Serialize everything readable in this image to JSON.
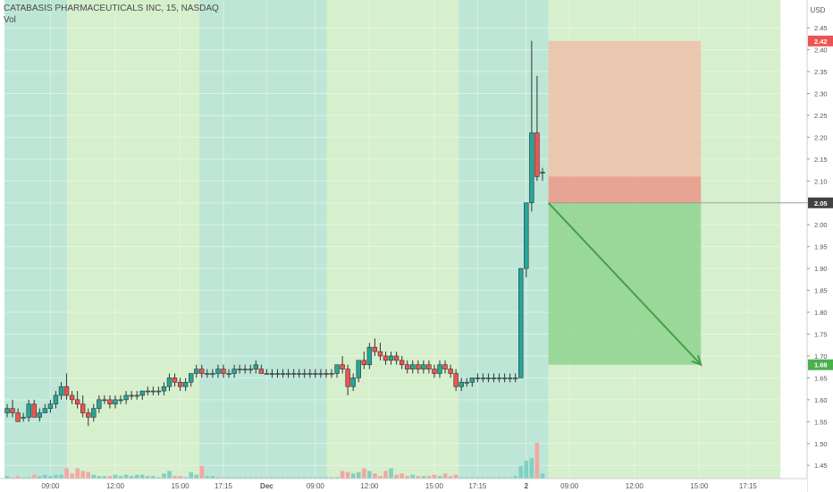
{
  "header": {
    "title": "CATABASIS PHARMACEUTICALS INC, 15, NASDAQ",
    "volume_label": "Vol"
  },
  "currency_label": "USD",
  "colors": {
    "session_pre": "#bde6d6",
    "session_regular": "#d6efcc",
    "candle_up": "#26a69a",
    "candle_down": "#ef5350",
    "vol_up": "#7fd1c4",
    "vol_down": "#f3a7a4",
    "stop_zone": "#e99f8f",
    "stop_zone_light": "#efc0aa",
    "target_zone": "#8fd38f",
    "arrow": "#43a047",
    "badge_red": "#ef5350",
    "badge_dark": "#424242",
    "badge_green": "#4caf50"
  },
  "chart_data": {
    "type": "candlestick",
    "symbol": "CATABASIS PHARMACEUTICALS INC",
    "interval": "15",
    "exchange": "NASDAQ",
    "ylim": [
      1.43,
      2.485
    ],
    "y_ticks": [
      1.45,
      1.5,
      1.55,
      1.6,
      1.65,
      1.7,
      1.75,
      1.8,
      1.85,
      1.9,
      1.95,
      2.0,
      2.05,
      2.1,
      2.15,
      2.2,
      2.25,
      2.3,
      2.35,
      2.4,
      2.45
    ],
    "y_tick_labels": [
      "1.45",
      "1.50",
      "1.55",
      "1.60",
      "1.65",
      "1.70",
      "1.75",
      "1.80",
      "1.85",
      "1.90",
      "1.95",
      "2.00",
      "2.05",
      "2.10",
      "2.15",
      "2.20",
      "2.25",
      "2.30",
      "2.35",
      "2.40",
      "2.45"
    ],
    "x_tick_labels": [
      {
        "label": "09:00",
        "bar": 8
      },
      {
        "label": "12:00",
        "bar": 20
      },
      {
        "label": "15:00",
        "bar": 32
      },
      {
        "label": "17:15",
        "bar": 40
      },
      {
        "label": "Dec",
        "bar": 48
      },
      {
        "label": "09:00",
        "bar": 57
      },
      {
        "label": "12:00",
        "bar": 67
      },
      {
        "label": "15:00",
        "bar": 79
      },
      {
        "label": "17:15",
        "bar": 87
      },
      {
        "label": "2",
        "bar": 96
      },
      {
        "label": "09:00",
        "bar": 104
      },
      {
        "label": "12:00",
        "bar": 116
      },
      {
        "label": "15:00",
        "bar": 128
      },
      {
        "label": "17:15",
        "bar": 137
      }
    ],
    "sessions": [
      {
        "type": "pre",
        "start": -0.5,
        "end": 11.1
      },
      {
        "type": "regular",
        "start": 11.1,
        "end": 35.5
      },
      {
        "type": "pre",
        "start": 35.5,
        "end": 59.1
      },
      {
        "type": "regular",
        "start": 59.1,
        "end": 83.5
      },
      {
        "type": "pre",
        "start": 83.5,
        "end": 100.1
      },
      {
        "type": "regular",
        "start": 100.1,
        "end": 143
      }
    ],
    "candles": [
      [
        1.57,
        1.59,
        1.56,
        1.58,
        2
      ],
      [
        1.58,
        1.6,
        1.56,
        1.57,
        1
      ],
      [
        1.57,
        1.58,
        1.55,
        1.55,
        2
      ],
      [
        1.56,
        1.57,
        1.55,
        1.56,
        1
      ],
      [
        1.56,
        1.6,
        1.55,
        1.59,
        1
      ],
      [
        1.59,
        1.6,
        1.56,
        1.56,
        3
      ],
      [
        1.56,
        1.58,
        1.55,
        1.57,
        2
      ],
      [
        1.57,
        1.59,
        1.57,
        1.58,
        3
      ],
      [
        1.58,
        1.6,
        1.57,
        1.59,
        2
      ],
      [
        1.59,
        1.62,
        1.58,
        1.61,
        3
      ],
      [
        1.61,
        1.64,
        1.6,
        1.63,
        3
      ],
      [
        1.63,
        1.66,
        1.6,
        1.61,
        8
      ],
      [
        1.61,
        1.62,
        1.59,
        1.6,
        4
      ],
      [
        1.6,
        1.62,
        1.58,
        1.59,
        8
      ],
      [
        1.59,
        1.61,
        1.56,
        1.57,
        6
      ],
      [
        1.57,
        1.58,
        1.54,
        1.56,
        5
      ],
      [
        1.56,
        1.59,
        1.55,
        1.58,
        3
      ],
      [
        1.58,
        1.61,
        1.57,
        1.6,
        2
      ],
      [
        1.6,
        1.61,
        1.59,
        1.6,
        2
      ],
      [
        1.6,
        1.61,
        1.58,
        1.59,
        2
      ],
      [
        1.59,
        1.61,
        1.58,
        1.6,
        3
      ],
      [
        1.6,
        1.61,
        1.59,
        1.6,
        2
      ],
      [
        1.6,
        1.62,
        1.59,
        1.61,
        3
      ],
      [
        1.61,
        1.62,
        1.6,
        1.61,
        2
      ],
      [
        1.61,
        1.62,
        1.6,
        1.61,
        3
      ],
      [
        1.61,
        1.62,
        1.6,
        1.62,
        3
      ],
      [
        1.62,
        1.63,
        1.61,
        1.62,
        2
      ],
      [
        1.62,
        1.63,
        1.61,
        1.62,
        2
      ],
      [
        1.62,
        1.63,
        1.61,
        1.62,
        1
      ],
      [
        1.62,
        1.64,
        1.61,
        1.63,
        4
      ],
      [
        1.63,
        1.66,
        1.62,
        1.65,
        6
      ],
      [
        1.65,
        1.66,
        1.63,
        1.64,
        2
      ],
      [
        1.64,
        1.65,
        1.62,
        1.63,
        2
      ],
      [
        1.63,
        1.65,
        1.62,
        1.64,
        1
      ],
      [
        1.64,
        1.66,
        1.63,
        1.66,
        5
      ],
      [
        1.66,
        1.68,
        1.65,
        1.67,
        3
      ],
      [
        1.67,
        1.68,
        1.65,
        1.66,
        10
      ],
      [
        1.66,
        1.67,
        1.65,
        1.66,
        2
      ],
      [
        1.66,
        1.67,
        1.65,
        1.66,
        2
      ],
      [
        1.66,
        1.68,
        1.65,
        1.67,
        1
      ],
      [
        1.67,
        1.68,
        1.65,
        1.66,
        1
      ],
      [
        1.66,
        1.67,
        1.65,
        1.66,
        1
      ],
      [
        1.66,
        1.68,
        1.65,
        1.67,
        1
      ],
      [
        1.67,
        1.68,
        1.66,
        1.67,
        1
      ],
      [
        1.67,
        1.68,
        1.66,
        1.67,
        1
      ],
      [
        1.67,
        1.68,
        1.66,
        1.67,
        1
      ],
      [
        1.67,
        1.69,
        1.66,
        1.68,
        1
      ],
      [
        1.67,
        1.68,
        1.66,
        1.66,
        1
      ],
      [
        1.66,
        1.67,
        1.66,
        1.66,
        1
      ],
      [
        1.66,
        1.67,
        1.65,
        1.66,
        1
      ],
      [
        1.66,
        1.67,
        1.65,
        1.66,
        1
      ],
      [
        1.66,
        1.67,
        1.65,
        1.66,
        1
      ],
      [
        1.66,
        1.67,
        1.65,
        1.66,
        1
      ],
      [
        1.66,
        1.67,
        1.65,
        1.66,
        1
      ],
      [
        1.66,
        1.67,
        1.65,
        1.66,
        1
      ],
      [
        1.66,
        1.67,
        1.65,
        1.66,
        1
      ],
      [
        1.66,
        1.67,
        1.65,
        1.66,
        1
      ],
      [
        1.66,
        1.67,
        1.65,
        1.66,
        1
      ],
      [
        1.66,
        1.67,
        1.65,
        1.66,
        1
      ],
      [
        1.66,
        1.67,
        1.65,
        1.66,
        1
      ],
      [
        1.66,
        1.67,
        1.65,
        1.66,
        1
      ],
      [
        1.66,
        1.68,
        1.65,
        1.68,
        1
      ],
      [
        1.68,
        1.7,
        1.66,
        1.67,
        6
      ],
      [
        1.67,
        1.68,
        1.61,
        1.63,
        5
      ],
      [
        1.63,
        1.66,
        1.62,
        1.65,
        4
      ],
      [
        1.65,
        1.69,
        1.64,
        1.69,
        5
      ],
      [
        1.69,
        1.71,
        1.67,
        1.68,
        8
      ],
      [
        1.68,
        1.73,
        1.67,
        1.72,
        6
      ],
      [
        1.72,
        1.74,
        1.7,
        1.71,
        4
      ],
      [
        1.71,
        1.73,
        1.69,
        1.7,
        2
      ],
      [
        1.7,
        1.71,
        1.68,
        1.69,
        6
      ],
      [
        1.69,
        1.71,
        1.68,
        1.7,
        8
      ],
      [
        1.7,
        1.71,
        1.68,
        1.69,
        3
      ],
      [
        1.69,
        1.7,
        1.67,
        1.68,
        4
      ],
      [
        1.68,
        1.69,
        1.66,
        1.67,
        2
      ],
      [
        1.67,
        1.69,
        1.66,
        1.68,
        3
      ],
      [
        1.68,
        1.69,
        1.66,
        1.67,
        2
      ],
      [
        1.67,
        1.69,
        1.66,
        1.68,
        2
      ],
      [
        1.68,
        1.69,
        1.66,
        1.67,
        2
      ],
      [
        1.67,
        1.68,
        1.65,
        1.66,
        3
      ],
      [
        1.66,
        1.69,
        1.65,
        1.68,
        2
      ],
      [
        1.68,
        1.69,
        1.66,
        1.67,
        4
      ],
      [
        1.67,
        1.68,
        1.65,
        1.66,
        2
      ],
      [
        1.66,
        1.67,
        1.62,
        1.63,
        3
      ],
      [
        1.63,
        1.65,
        1.62,
        1.64,
        1
      ],
      [
        1.64,
        1.65,
        1.63,
        1.64,
        1
      ],
      [
        1.64,
        1.65,
        1.63,
        1.65,
        1
      ],
      [
        1.65,
        1.66,
        1.64,
        1.65,
        1
      ],
      [
        1.65,
        1.66,
        1.64,
        1.65,
        1
      ],
      [
        1.65,
        1.66,
        1.64,
        1.65,
        1
      ],
      [
        1.65,
        1.66,
        1.64,
        1.65,
        1
      ],
      [
        1.65,
        1.66,
        1.64,
        1.65,
        1
      ],
      [
        1.65,
        1.66,
        1.64,
        1.65,
        1
      ],
      [
        1.65,
        1.66,
        1.64,
        1.65,
        1
      ],
      [
        1.65,
        1.66,
        1.64,
        1.65,
        2
      ],
      [
        1.65,
        1.9,
        1.65,
        1.9,
        10
      ],
      [
        1.9,
        2.05,
        1.88,
        2.05,
        14
      ],
      [
        2.05,
        2.42,
        2.03,
        2.21,
        16
      ],
      [
        2.21,
        2.34,
        2.1,
        2.11,
        28
      ],
      [
        2.12,
        2.13,
        2.1,
        2.12,
        4
      ]
    ],
    "last_price": 2.05,
    "price_badges": [
      {
        "value": 2.42,
        "label": "2.42",
        "style": "red"
      },
      {
        "value": 2.05,
        "label": "2.05",
        "style": "dark"
      },
      {
        "value": 1.68,
        "label": "1.68",
        "style": "green"
      }
    ],
    "position": {
      "side": "short",
      "entry": 2.05,
      "stop": 2.42,
      "target": 1.68,
      "inner": 2.11,
      "start_bar": 100.1,
      "end_bar": 128.3
    }
  }
}
